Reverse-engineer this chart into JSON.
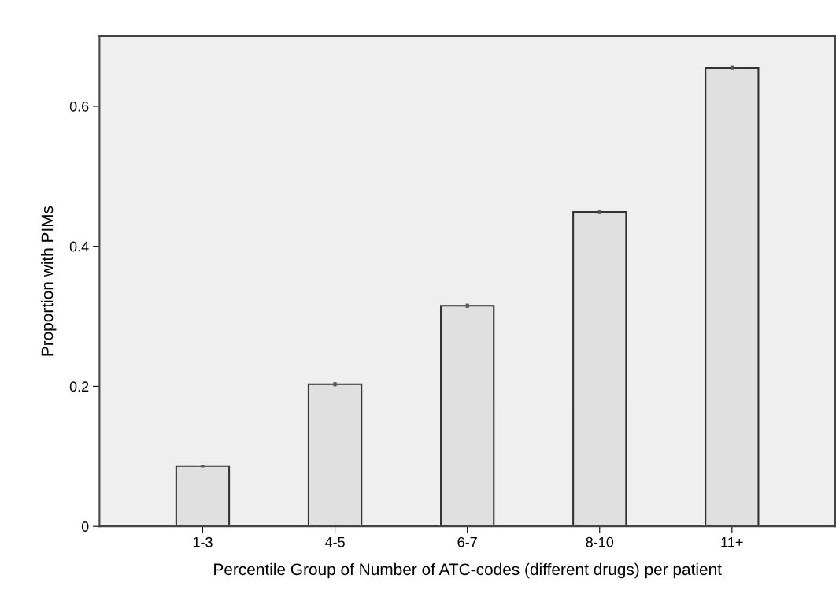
{
  "chart_data": {
    "type": "bar",
    "xlabel": "Percentile Group of Number of ATC-codes (different drugs) per patient",
    "ylabel": "Proportion with PIMs",
    "categories": [
      "1-3",
      "4-5",
      "6-7",
      "8-10",
      "11+"
    ],
    "values": [
      0.086,
      0.203,
      0.315,
      0.449,
      0.655
    ],
    "errors": [
      0.002,
      0.003,
      0.003,
      0.003,
      0.003
    ],
    "color": "#e0e0e0",
    "ylim": [
      0,
      0.7
    ],
    "yticks": [
      0,
      {
        "value": 0.2,
        "label": "0.2"
      },
      {
        "value": 0.4,
        "label": "0.4"
      },
      {
        "value": 0.6,
        "label": "0.6"
      }
    ],
    "grid": false
  }
}
